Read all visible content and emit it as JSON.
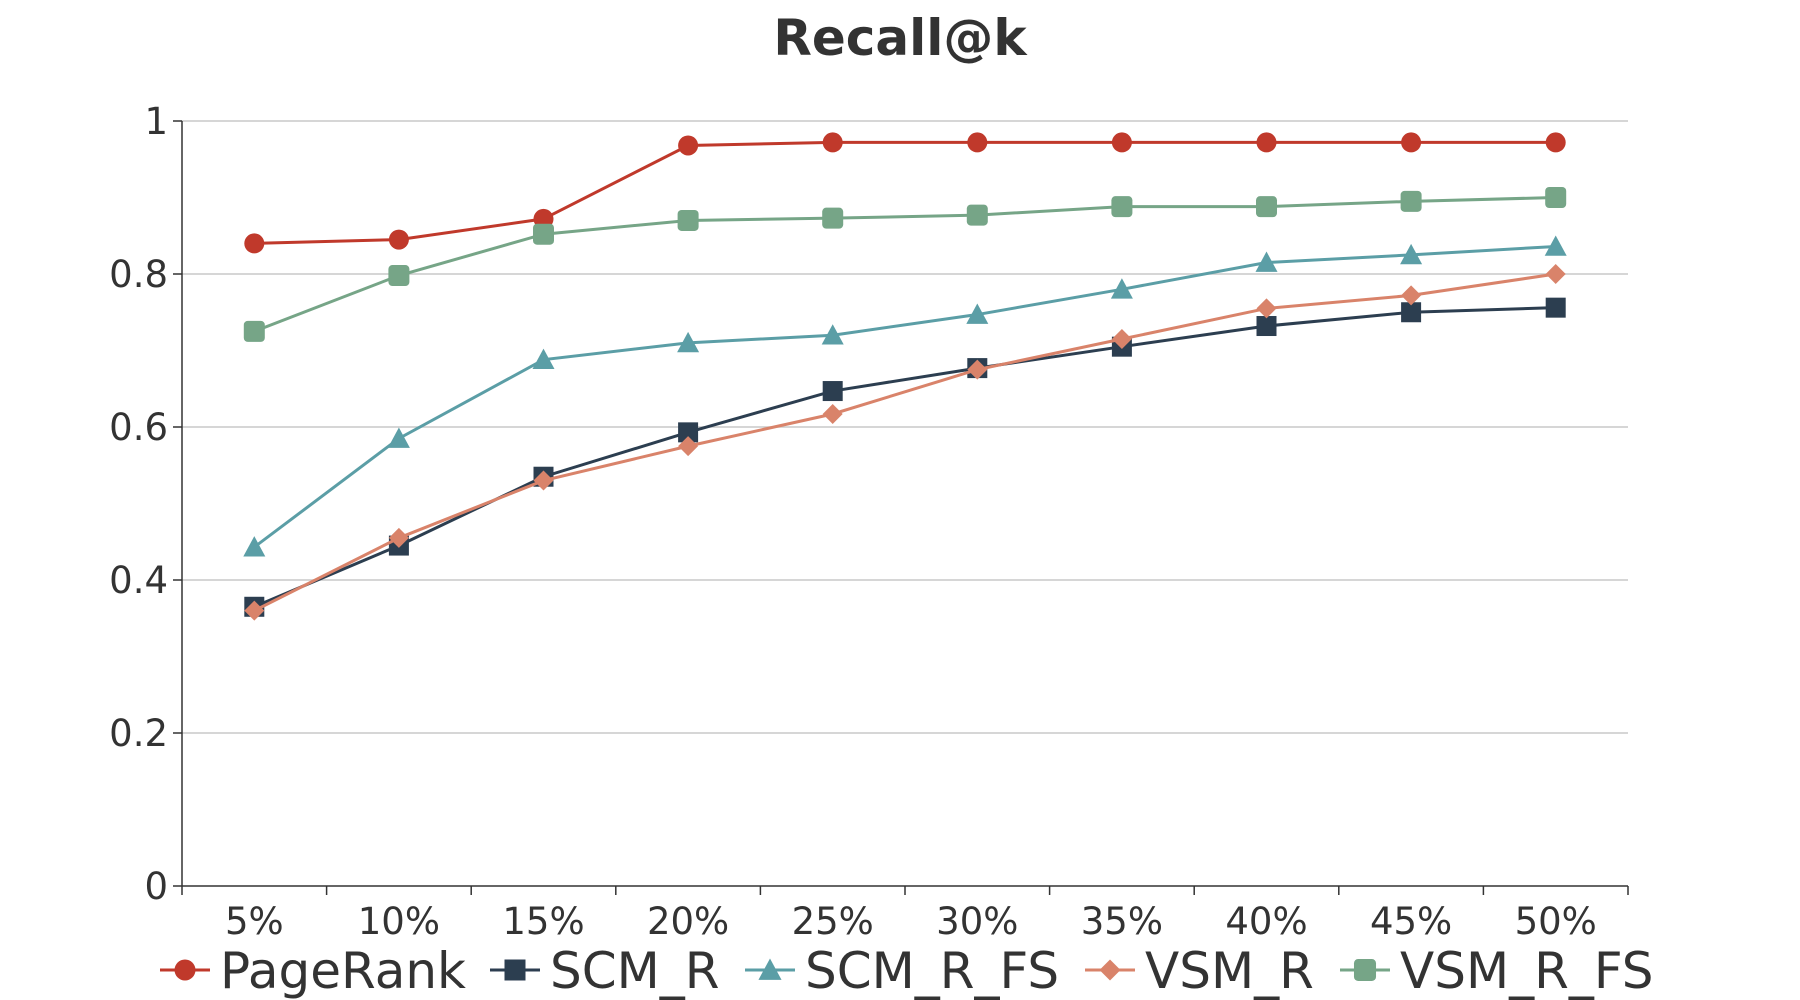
{
  "chart_data": {
    "type": "line",
    "title": "Recall@k",
    "xlabel": "",
    "ylabel": "",
    "categories": [
      "5%",
      "10%",
      "15%",
      "20%",
      "25%",
      "30%",
      "35%",
      "40%",
      "45%",
      "50%"
    ],
    "ylim": [
      0,
      1
    ],
    "yticks": [
      0,
      0.2,
      0.4,
      0.6,
      0.8,
      1
    ],
    "ytick_labels": [
      "0",
      "0.2",
      "0.4",
      "0.6",
      "0.8",
      "1"
    ],
    "grid": true,
    "legend_position": "bottom",
    "series": [
      {
        "name": "PageRank",
        "marker": "circle",
        "color": "#c0392b",
        "values": [
          0.84,
          0.845,
          0.872,
          0.968,
          0.972,
          0.972,
          0.972,
          0.972,
          0.972,
          0.972
        ]
      },
      {
        "name": "SCM_R",
        "marker": "square",
        "color": "#2c3e50",
        "values": [
          0.365,
          0.445,
          0.535,
          0.593,
          0.647,
          0.677,
          0.705,
          0.732,
          0.75,
          0.756
        ]
      },
      {
        "name": "SCM_R_FS",
        "marker": "triangle",
        "color": "#5b9ea6",
        "values": [
          0.443,
          0.585,
          0.688,
          0.71,
          0.72,
          0.747,
          0.78,
          0.815,
          0.825,
          0.836
        ]
      },
      {
        "name": "VSM_R",
        "marker": "diamond",
        "color": "#d9836a",
        "values": [
          0.36,
          0.455,
          0.53,
          0.575,
          0.617,
          0.675,
          0.715,
          0.755,
          0.772,
          0.8
        ]
      },
      {
        "name": "VSM_R_FS",
        "marker": "rounded-square",
        "color": "#76a587",
        "values": [
          0.725,
          0.798,
          0.852,
          0.87,
          0.873,
          0.877,
          0.888,
          0.888,
          0.895,
          0.9
        ]
      }
    ]
  }
}
